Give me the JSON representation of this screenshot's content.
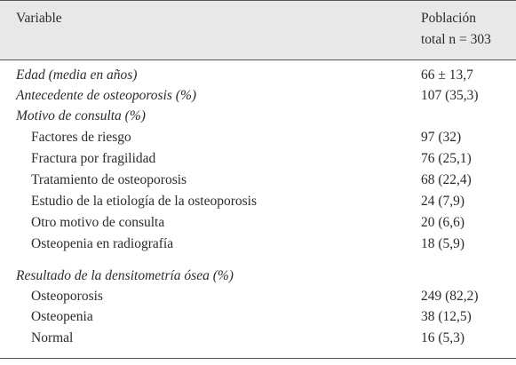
{
  "header": {
    "variable": "Variable",
    "population": [
      "Población",
      "total n = 303"
    ]
  },
  "rows": [
    {
      "label": "Edad (media en años)",
      "value": "66 ± 13,7"
    },
    {
      "label": "Antecedente de osteoporosis (%)",
      "value": "107 (35,3)"
    }
  ],
  "groups": [
    {
      "label": "Motivo de consulta (%)",
      "rows": [
        {
          "label": "Factores de riesgo",
          "value": "97 (32)"
        },
        {
          "label": "Fractura por fragilidad",
          "value": "76 (25,1)"
        },
        {
          "label": "Tratamiento de osteoporosis",
          "value": "68 (22,4)"
        },
        {
          "label": "Estudio de la etiología de la osteoporosis",
          "value": "24 (7,9)"
        },
        {
          "label": "Otro motivo de consulta",
          "value": "20 (6,6)"
        },
        {
          "label": "Osteopenia en radiografía",
          "value": "18 (5,9)"
        }
      ]
    },
    {
      "label": "Resultado de la densitometría ósea (%)",
      "rows": [
        {
          "label": "Osteoporosis",
          "value": "249 (82,2)"
        },
        {
          "label": "Osteopenia",
          "value": "38 (12,5)"
        },
        {
          "label": "Normal",
          "value": "16 (5,3)"
        }
      ]
    }
  ]
}
